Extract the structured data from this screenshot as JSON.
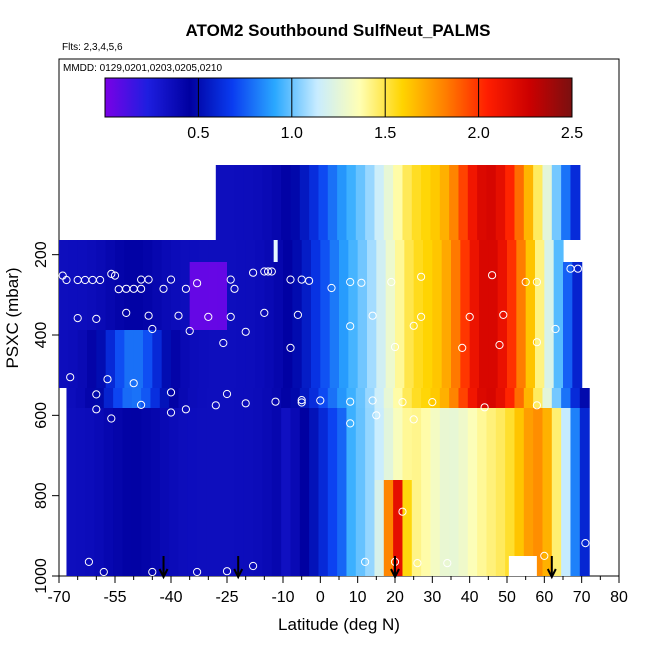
{
  "chart_data": {
    "type": "heatmap",
    "title": "ATOM2 Southbound SulfNeut_PALMS",
    "annotations": [
      "Flts: 2,3,4,5,6",
      "MMDD: 0129,0201,0203,0205,0210"
    ],
    "xlabel": "Latitude (deg N)",
    "ylabel": "PSXC (mbar)",
    "xlim": [
      -70,
      80
    ],
    "ylim": [
      1000,
      0
    ],
    "y_reversed": true,
    "x_ticks": [
      -70,
      -55,
      -40,
      -25,
      -10,
      0,
      10,
      20,
      30,
      40,
      50,
      60,
      70,
      80
    ],
    "x_tick_labels": [
      "-70",
      "-55",
      "-40",
      "-25",
      "-10",
      "0",
      "10",
      "20",
      "30",
      "40",
      "50",
      "60",
      "70",
      "80"
    ],
    "y_ticks": [
      200,
      400,
      600,
      800,
      1000
    ],
    "y_tick_labels": [
      "200",
      "400",
      "600",
      "800",
      "1000"
    ],
    "colorbar": {
      "range": [
        0,
        2.5
      ],
      "ticks": [
        0.5,
        1.0,
        1.5,
        2.0,
        2.5
      ],
      "tick_labels": [
        "0.5",
        "1.0",
        "1.5",
        "2.0",
        "2.5"
      ],
      "colors": [
        "#7a00e6",
        "#1e1ee0",
        "#0000a0",
        "#0a3cf0",
        "#2aa8ff",
        "#c8ecff",
        "#ffffb4",
        "#ffd400",
        "#ff8000",
        "#ff1e00",
        "#cc0000",
        "#7a1010"
      ]
    },
    "arrows_lat": [
      -42,
      -22,
      20,
      62
    ],
    "colors": {
      "marker": "#ffffff",
      "arrow": "#000000"
    }
  }
}
